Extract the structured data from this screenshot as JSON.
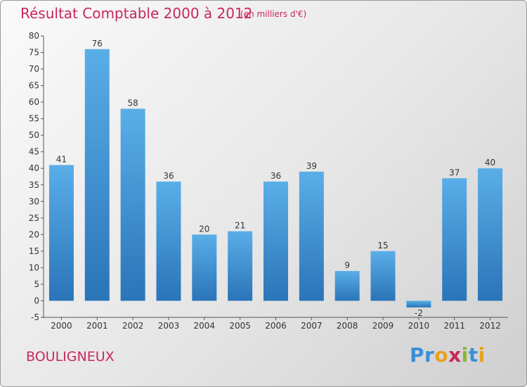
{
  "chart_data": {
    "type": "bar",
    "title": "Résultat Comptable 2000 à 2012",
    "subtitle": "(en milliers d'€)",
    "categories": [
      "2000",
      "2001",
      "2002",
      "2003",
      "2004",
      "2005",
      "2006",
      "2007",
      "2008",
      "2009",
      "2010",
      "2011",
      "2012"
    ],
    "values": [
      41,
      76,
      58,
      36,
      20,
      21,
      36,
      39,
      9,
      15,
      -2,
      37,
      40
    ],
    "ylim": [
      -5,
      80
    ],
    "yticks": [
      -5,
      0,
      5,
      10,
      15,
      20,
      25,
      30,
      35,
      40,
      45,
      50,
      55,
      60,
      65,
      70,
      75,
      80
    ],
    "grid": false,
    "bar_color_light": "#5aaee8",
    "bar_color_dark": "#2a74b8"
  },
  "footer": {
    "town": "BOULIGNEUX",
    "logo": [
      "P",
      "r",
      "o",
      "x",
      "i",
      "t",
      "i"
    ],
    "logo_colors": [
      "#3a8fd8",
      "#3a8fd8",
      "#e8a020",
      "#c8285a",
      "#88b830",
      "#3a8fd8",
      "#e8a020"
    ]
  },
  "colors": {
    "title": "#c8285a"
  }
}
